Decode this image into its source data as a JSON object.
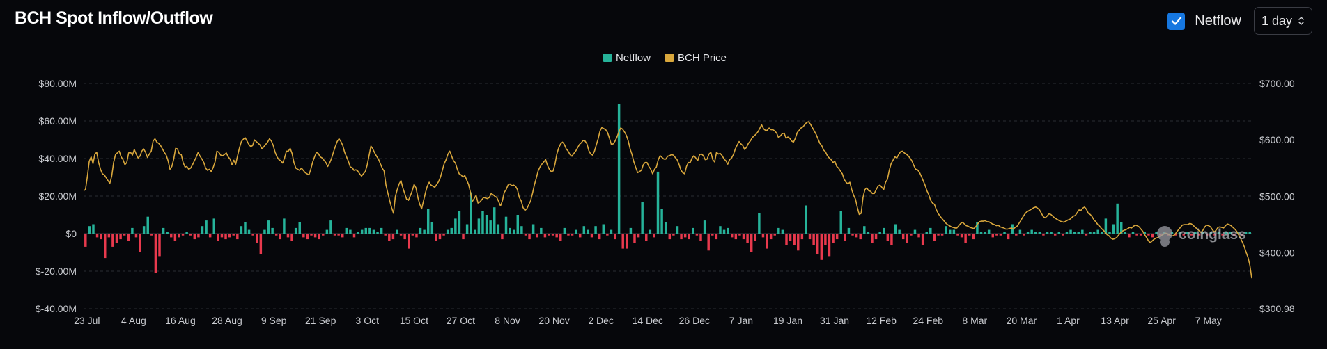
{
  "header": {
    "title": "BCH Spot Inflow/Outflow",
    "netflow_toggle_label": "Netflow",
    "netflow_checked": true,
    "interval_value": "1 day"
  },
  "colors": {
    "positive": "#26b39a",
    "negative": "#e8394d",
    "price": "#d9a73c",
    "grid": "#2a2c33",
    "axis_text": "#c9cbd0"
  },
  "chart_data": {
    "type": "bar+line",
    "legend": [
      {
        "name": "Netflow",
        "color": "#26b39a"
      },
      {
        "name": "BCH Price",
        "color": "#d9a73c"
      }
    ],
    "legend_position": "top-center",
    "grid": true,
    "watermark": "coinglass",
    "x_ticks": [
      "23 Jul",
      "4 Aug",
      "16 Aug",
      "28 Aug",
      "9 Sep",
      "21 Sep",
      "3 Oct",
      "15 Oct",
      "27 Oct",
      "8 Nov",
      "20 Nov",
      "2 Dec",
      "14 Dec",
      "26 Dec",
      "7 Jan",
      "19 Jan",
      "31 Jan",
      "12 Feb",
      "24 Feb",
      "8 Mar",
      "20 Mar",
      "1 Apr",
      "13 Apr",
      "25 Apr",
      "7 May"
    ],
    "left_axis": {
      "ticks": [
        "$80.00M",
        "$60.00M",
        "$40.00M",
        "$20.00M",
        "$0",
        "$-20.00M",
        "$-40.00M"
      ],
      "range_musd": [
        -40,
        80
      ]
    },
    "right_axis": {
      "ticks": [
        "$700.00",
        "$600.00",
        "$500.00",
        "$400.00",
        "$300.98"
      ],
      "range_usd": [
        300.98,
        700
      ]
    },
    "netflow_musd": [
      -7,
      4,
      5,
      -2,
      -3,
      -13,
      -2,
      -7,
      -5,
      -3,
      -1,
      -4,
      3,
      -2,
      -10,
      4,
      9,
      -1,
      -21,
      -12,
      3,
      1,
      -2,
      -4,
      -2,
      -1,
      1,
      -1,
      -3,
      -2,
      4,
      7,
      -2,
      8,
      -4,
      -2,
      -3,
      -2,
      -1,
      -3,
      4,
      6,
      2,
      -1,
      -5,
      -11,
      2,
      7,
      3,
      -1,
      -3,
      8,
      -2,
      -4,
      3,
      6,
      -2,
      -3,
      -1,
      -2,
      -3,
      -1,
      2,
      7,
      -1,
      -1,
      -2,
      3,
      2,
      -2,
      1,
      2,
      3,
      3,
      2,
      1,
      3,
      -1,
      -4,
      -3,
      2,
      -1,
      -3,
      -8,
      -1,
      -2,
      3,
      2,
      13,
      6,
      -4,
      -3,
      -1,
      2,
      3,
      8,
      12,
      -3,
      5,
      22,
      2,
      8,
      12,
      10,
      7,
      14,
      5,
      -3,
      9,
      3,
      2,
      10,
      4,
      -1,
      -3,
      5,
      -2,
      3,
      -2,
      -1,
      -1,
      -2,
      -4,
      3,
      -1,
      -1,
      2,
      -2,
      4,
      2,
      -2,
      4,
      -3,
      5,
      -1,
      2,
      -3,
      69,
      -8,
      -8,
      3,
      -5,
      -2,
      17,
      -4,
      2,
      -2,
      33,
      13,
      6,
      -3,
      -1,
      4,
      -3,
      -2,
      -3,
      3,
      -1,
      -4,
      7,
      -9,
      -1,
      -3,
      4,
      2,
      3,
      -2,
      -3,
      -1,
      -3,
      -5,
      -10,
      -4,
      11,
      -2,
      -8,
      -3,
      -1,
      3,
      2,
      -6,
      -4,
      -6,
      -9,
      -3,
      15,
      -3,
      -6,
      -11,
      -14,
      -6,
      -12,
      -5,
      -3,
      12,
      -4,
      3,
      -1,
      -2,
      -3,
      4,
      1,
      -5,
      -3,
      1,
      3,
      -4,
      -6,
      5,
      2,
      -3,
      -5,
      -1,
      2,
      -2,
      -6,
      1,
      3,
      -4,
      -1,
      -1,
      4,
      2,
      2,
      -1,
      -2,
      -5,
      -1,
      -3,
      6,
      1,
      1,
      2,
      -2,
      -1,
      -1,
      1,
      -3,
      5,
      -1,
      2,
      -1,
      1,
      2,
      1,
      1,
      -1,
      1,
      1,
      -1,
      1,
      -1,
      1,
      2,
      1,
      1,
      2,
      -1,
      1,
      1,
      2,
      1,
      8,
      1,
      5,
      16,
      6,
      1,
      -2,
      1,
      -1,
      -1,
      1,
      -1,
      -2,
      1,
      -1,
      1,
      -1,
      1,
      -1,
      1,
      -1,
      1,
      -1,
      1,
      -1,
      1,
      -1,
      1,
      -1,
      1,
      -1,
      1,
      1,
      -1,
      1,
      -1,
      1,
      1
    ],
    "price_usd": [
      510,
      512,
      535,
      562,
      570,
      558,
      575,
      578,
      560,
      548,
      540,
      538,
      533,
      528,
      523,
      536,
      560,
      574,
      577,
      580,
      570,
      565,
      556,
      560,
      577,
      578,
      573,
      583,
      575,
      568,
      571,
      580,
      584,
      578,
      569,
      575,
      580,
      598,
      602,
      596,
      594,
      590,
      584,
      578,
      573,
      563,
      548,
      553,
      566,
      585,
      584,
      575,
      574,
      560,
      552,
      553,
      548,
      550,
      556,
      563,
      570,
      578,
      571,
      566,
      560,
      550,
      546,
      548,
      544,
      551,
      561,
      580,
      578,
      573,
      572,
      574,
      577,
      570,
      566,
      556,
      564,
      557,
      572,
      586,
      597,
      601,
      604,
      598,
      592,
      588,
      590,
      600,
      597,
      594,
      591,
      584,
      588,
      592,
      596,
      602,
      598,
      590,
      578,
      570,
      565,
      563,
      559,
      568,
      580,
      580,
      585,
      576,
      560,
      550,
      548,
      546,
      550,
      546,
      542,
      540,
      538,
      548,
      561,
      570,
      578,
      576,
      570,
      568,
      564,
      560,
      553,
      559,
      567,
      578,
      588,
      597,
      602,
      597,
      590,
      578,
      570,
      562,
      552,
      551,
      546,
      547,
      545,
      540,
      536,
      540,
      544,
      555,
      572,
      589,
      584,
      577,
      571,
      566,
      558,
      550,
      545,
      520,
      506,
      492,
      480,
      470,
      500,
      512,
      522,
      528,
      515,
      505,
      495,
      493,
      501,
      510,
      521,
      515,
      498,
      486,
      478,
      492,
      506,
      518,
      525,
      520,
      518,
      516,
      521,
      526,
      534,
      546,
      558,
      565,
      575,
      580,
      571,
      563,
      559,
      548,
      540,
      538,
      534,
      537,
      529,
      521,
      507,
      491,
      496,
      502,
      488,
      490,
      494,
      498,
      497,
      496,
      498,
      505,
      503,
      500,
      498,
      491,
      483,
      492,
      507,
      512,
      520,
      522,
      519,
      520,
      518,
      512,
      498,
      492,
      480,
      475,
      478,
      485,
      492,
      505,
      520,
      532,
      545,
      552,
      557,
      561,
      565,
      555,
      548,
      544,
      545,
      557,
      575,
      586,
      593,
      596,
      592,
      584,
      580,
      574,
      571,
      576,
      580,
      586,
      592,
      595,
      599,
      598,
      593,
      581,
      575,
      573,
      580,
      591,
      602,
      616,
      622,
      620,
      618,
      613,
      603,
      592,
      593,
      598,
      605,
      614,
      621,
      619,
      614,
      608,
      598,
      584,
      574,
      561,
      551,
      542,
      544,
      546,
      556,
      560,
      560,
      553,
      548,
      540,
      548,
      552,
      565,
      572,
      569,
      566,
      566,
      571,
      572,
      574,
      573,
      569,
      565,
      557,
      547,
      542,
      540,
      553,
      560,
      560,
      568,
      572,
      568,
      563,
      574,
      575,
      572,
      565,
      566,
      575,
      578,
      565,
      561,
      578,
      575,
      576,
      572,
      566,
      563,
      557,
      565,
      568,
      574,
      584,
      591,
      597,
      593,
      590,
      583,
      587,
      594,
      598,
      604,
      607,
      610,
      614,
      620,
      627,
      620,
      617,
      617,
      621,
      618,
      618,
      616,
      612,
      604,
      607,
      611,
      612,
      603,
      605,
      603,
      598,
      596,
      603,
      613,
      617,
      621,
      623,
      627,
      631,
      632,
      628,
      622,
      616,
      610,
      602,
      594,
      590,
      582,
      579,
      572,
      568,
      565,
      560,
      562,
      553,
      550,
      545,
      540,
      530,
      525,
      522,
      525,
      512,
      502,
      495,
      480,
      468,
      470,
      498,
      512,
      515,
      510,
      509,
      505,
      505,
      512,
      518,
      520,
      516,
      512,
      525,
      530,
      546,
      558,
      564,
      570,
      568,
      574,
      579,
      580,
      577,
      575,
      572,
      568,
      563,
      555,
      548,
      547,
      543,
      536,
      528,
      520,
      510,
      503,
      493,
      488,
      486,
      477,
      470,
      465,
      461,
      457,
      453,
      450,
      448,
      446,
      445,
      444,
      444,
      448,
      452,
      454,
      451,
      448,
      447,
      445,
      444,
      443,
      446,
      451,
      455,
      456,
      456,
      457,
      455,
      455,
      453,
      451,
      450,
      448,
      449,
      446,
      445,
      444,
      442,
      442,
      443,
      444,
      442,
      445,
      447,
      452,
      457,
      463,
      468,
      472,
      474,
      476,
      478,
      480,
      481,
      479,
      476,
      470,
      464,
      462,
      465,
      469,
      468,
      465,
      462,
      460,
      458,
      456,
      455,
      454,
      456,
      458,
      459,
      462,
      465,
      466,
      471,
      476,
      475,
      479,
      481,
      477,
      470,
      468,
      464,
      458,
      455,
      450,
      447,
      443,
      440,
      436,
      432,
      430,
      426,
      424,
      425,
      427,
      431,
      435,
      438,
      440,
      441,
      443,
      445,
      444,
      447,
      449,
      448,
      446,
      442,
      438,
      432,
      427,
      421,
      418,
      421,
      424,
      426,
      427,
      429,
      431,
      433,
      435,
      434,
      432,
      430,
      430,
      432,
      437,
      441,
      445,
      449,
      450,
      450,
      450,
      452,
      451,
      448,
      445,
      442,
      439,
      436,
      440,
      446,
      449,
      448,
      446,
      441,
      437,
      440,
      445,
      446,
      445,
      444,
      448,
      451,
      450,
      448,
      445,
      442,
      438,
      432,
      426,
      419,
      411,
      401,
      392,
      378,
      355
    ]
  }
}
